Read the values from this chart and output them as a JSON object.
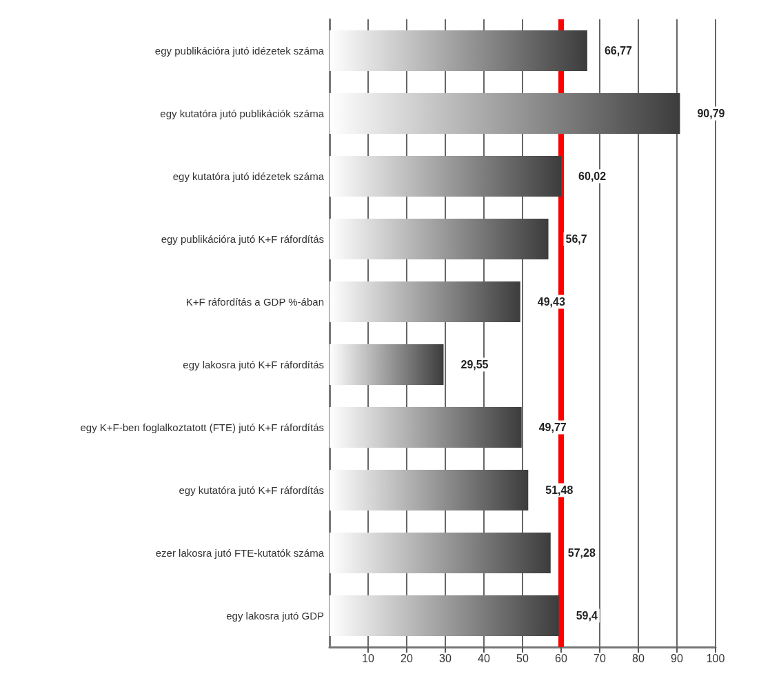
{
  "chart_data": {
    "type": "bar",
    "orientation": "horizontal",
    "categories": [
      "egy publikációra jutó idézetek száma",
      "egy kutatóra jutó publikációk száma",
      "egy kutatóra jutó idézetek száma",
      "egy publikációra jutó K+F ráfordítás",
      "K+F ráfordítás a GDP %-ában",
      "egy lakosra jutó K+F ráfordítás",
      "egy K+F-ben foglalkoztatott (FTE) jutó K+F ráfordítás",
      "egy kutatóra jutó K+F ráfordítás",
      "ezer lakosra jutó FTE-kutatók száma",
      "egy lakosra jutó GDP"
    ],
    "values": [
      66.77,
      90.79,
      60.02,
      56.7,
      49.43,
      29.55,
      49.77,
      51.48,
      57.28,
      59.4
    ],
    "value_labels": [
      "66,77",
      "90,79",
      "60,02",
      "56,7",
      "49,43",
      "29,55",
      "49,77",
      "51,48",
      "57,28",
      "59,4"
    ],
    "color": "#3c3c3c",
    "xlim": [
      0,
      100
    ],
    "xticks": [
      10,
      20,
      30,
      40,
      50,
      60,
      70,
      80,
      90,
      100
    ],
    "grid": "x",
    "ref_lines": [
      {
        "axis": "x",
        "value": 60,
        "color": "#ff0000"
      }
    ]
  }
}
